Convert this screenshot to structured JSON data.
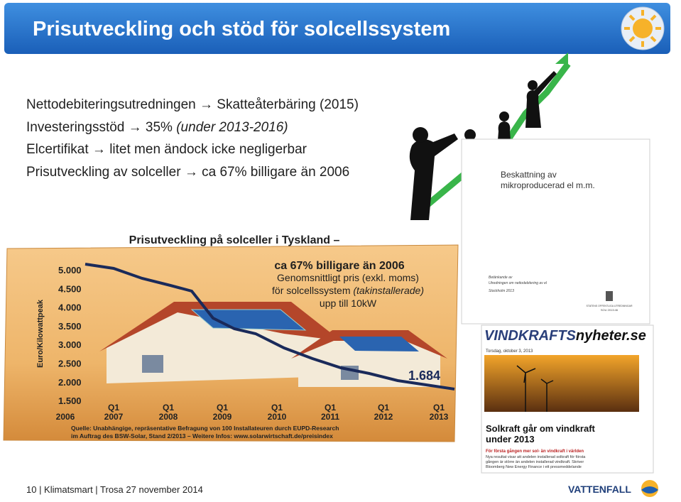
{
  "header": {
    "title": "Prisutveckling och stöd för solcellssystem"
  },
  "arrow": "→",
  "bullets": [
    {
      "before": "Nettodebiteringsutredningen",
      "after": "Skatteåterbäring (2015)"
    },
    {
      "before": "Investeringsstöd",
      "after": "35%",
      "italic": "(under 2013-2016)"
    },
    {
      "before": "Elcertifikat",
      "after": "litet men ändock icke negligerbar"
    },
    {
      "before": "Prisutveckling av solceller",
      "after": "ca 67% billigare än 2006"
    }
  ],
  "caption": {
    "line1": "Prisutveckling på solceller i Tyskland –",
    "line2": "ca 67% billigare än 2006",
    "line3": "Genomsnittligt pris (exkl. moms)",
    "line4_plain": "för solcellssystem",
    "line4_italic": "(takinstallerade)",
    "line5": "upp till 10kW"
  },
  "chart_image": {
    "y_axis_label": "Euro/Kilowattpeak",
    "y_labels": [
      "5.000",
      "4.500",
      "4.000",
      "3.500",
      "3.000",
      "2.500",
      "2.000",
      "1.500"
    ],
    "x_labels": [
      [
        "2006"
      ],
      [
        "Q1",
        "2007"
      ],
      [
        "Q1",
        "2008"
      ],
      [
        "Q1",
        "2009"
      ],
      [
        "Q1",
        "2010"
      ],
      [
        "Q1",
        "2011"
      ],
      [
        "Q1",
        "2012"
      ],
      [
        "Q1",
        "2013"
      ]
    ],
    "end_label": "1.684",
    "source": [
      "Quelle: Unabhängige, repräsentative Befragung von 100 Installateuren durch EUPD-Research",
      "im Auftrag des BSW-Solar, Stand 2/2013 – Weitere Infos: www.solarwirtschaft.de/preisindex"
    ]
  },
  "report": {
    "title_line1": "Beskattning av",
    "title_line2": "mikroproducerad el m.m.",
    "meta": [
      "Betänkande av",
      "Utredningen om nettodebitering av el",
      "Stockholm 2013"
    ],
    "publisher": "STATENS OFFENTLIGA UTREDNINGAR",
    "number": "SOU 2013:46"
  },
  "website": {
    "brand_main": "VINDKRAFTS",
    "brand_tail": "nyheter.se",
    "date": "Torsdag, oktober 3, 2013",
    "headline_line1": "Solkraft går om vindkraft",
    "headline_line2": "under 2013",
    "lead": "För första gången mer sol- än vindkraft i världen",
    "body": [
      "Nya resultat visar att andelen installerad solkraft för första",
      "gången är större än andelen installerad vindkraft. Skriver",
      "Bloomberg New Energy Finance i ett pressmeddelande"
    ]
  },
  "footer": {
    "text": "10 | Klimatsmart | Trosa 27 november 2014",
    "logo": "VATTENFALL"
  }
}
